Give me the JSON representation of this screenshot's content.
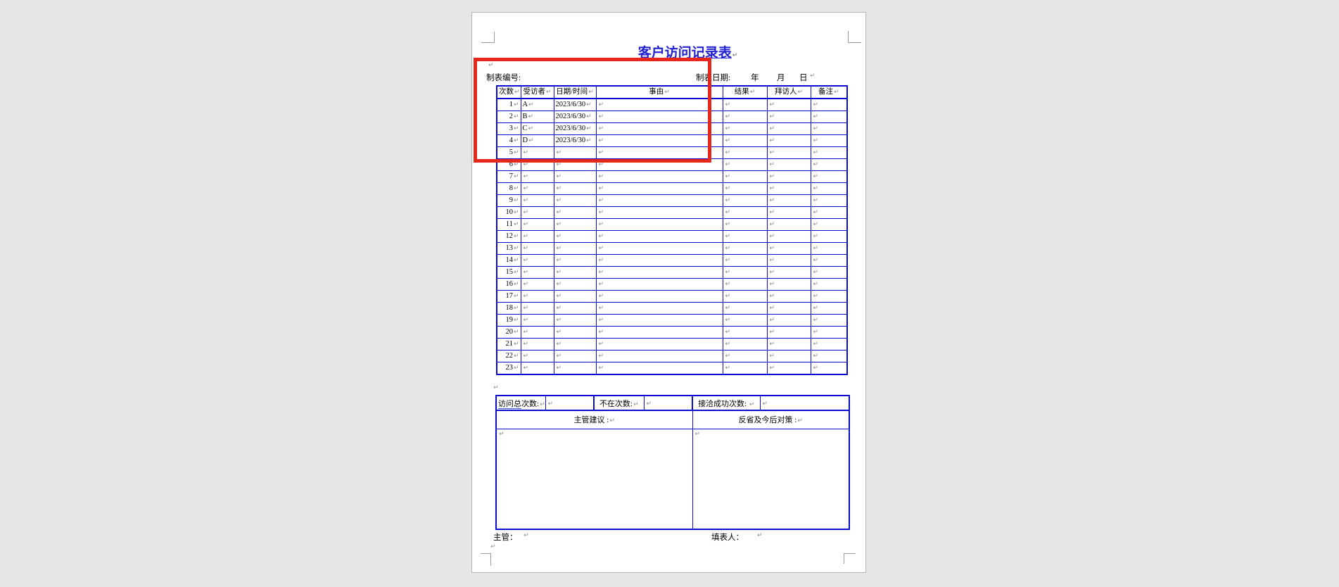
{
  "marks": {
    "pilcrow": "↵"
  },
  "title": "客户访问记录表",
  "meta": {
    "form_no_label": "制表编号:",
    "date_label": "制表日期:",
    "year_label": "年",
    "month_label": "月",
    "day_label": "日"
  },
  "table": {
    "headers": [
      "次数",
      "受访者",
      "日期/时间",
      "事由",
      "结果",
      "拜访人",
      "备注"
    ],
    "rows": [
      {
        "no": "1",
        "visitor": "A",
        "date": "2023/6/30",
        "reason": "",
        "result": "",
        "caller": "",
        "note": ""
      },
      {
        "no": "2",
        "visitor": "B",
        "date": "2023/6/30",
        "reason": "",
        "result": "",
        "caller": "",
        "note": ""
      },
      {
        "no": "3",
        "visitor": "C",
        "date": "2023/6/30",
        "reason": "",
        "result": "",
        "caller": "",
        "note": ""
      },
      {
        "no": "4",
        "visitor": "D",
        "date": "2023/6/30",
        "reason": "",
        "result": "",
        "caller": "",
        "note": ""
      },
      {
        "no": "5",
        "visitor": "",
        "date": "",
        "reason": "",
        "result": "",
        "caller": "",
        "note": ""
      },
      {
        "no": "6",
        "visitor": "",
        "date": "",
        "reason": "",
        "result": "",
        "caller": "",
        "note": ""
      },
      {
        "no": "7",
        "visitor": "",
        "date": "",
        "reason": "",
        "result": "",
        "caller": "",
        "note": ""
      },
      {
        "no": "8",
        "visitor": "",
        "date": "",
        "reason": "",
        "result": "",
        "caller": "",
        "note": ""
      },
      {
        "no": "9",
        "visitor": "",
        "date": "",
        "reason": "",
        "result": "",
        "caller": "",
        "note": ""
      },
      {
        "no": "10",
        "visitor": "",
        "date": "",
        "reason": "",
        "result": "",
        "caller": "",
        "note": ""
      },
      {
        "no": "11",
        "visitor": "",
        "date": "",
        "reason": "",
        "result": "",
        "caller": "",
        "note": ""
      },
      {
        "no": "12",
        "visitor": "",
        "date": "",
        "reason": "",
        "result": "",
        "caller": "",
        "note": ""
      },
      {
        "no": "13",
        "visitor": "",
        "date": "",
        "reason": "",
        "result": "",
        "caller": "",
        "note": ""
      },
      {
        "no": "14",
        "visitor": "",
        "date": "",
        "reason": "",
        "result": "",
        "caller": "",
        "note": ""
      },
      {
        "no": "15",
        "visitor": "",
        "date": "",
        "reason": "",
        "result": "",
        "caller": "",
        "note": ""
      },
      {
        "no": "16",
        "visitor": "",
        "date": "",
        "reason": "",
        "result": "",
        "caller": "",
        "note": ""
      },
      {
        "no": "17",
        "visitor": "",
        "date": "",
        "reason": "",
        "result": "",
        "caller": "",
        "note": ""
      },
      {
        "no": "18",
        "visitor": "",
        "date": "",
        "reason": "",
        "result": "",
        "caller": "",
        "note": ""
      },
      {
        "no": "19",
        "visitor": "",
        "date": "",
        "reason": "",
        "result": "",
        "caller": "",
        "note": ""
      },
      {
        "no": "20",
        "visitor": "",
        "date": "",
        "reason": "",
        "result": "",
        "caller": "",
        "note": ""
      },
      {
        "no": "21",
        "visitor": "",
        "date": "",
        "reason": "",
        "result": "",
        "caller": "",
        "note": ""
      },
      {
        "no": "22",
        "visitor": "",
        "date": "",
        "reason": "",
        "result": "",
        "caller": "",
        "note": ""
      },
      {
        "no": "23",
        "visitor": "",
        "date": "",
        "reason": "",
        "result": "",
        "caller": "",
        "note": ""
      }
    ]
  },
  "summary": {
    "total_label_underlined": "访问总",
    "total_label_rest": "次数:",
    "absent_label": "不在次数:",
    "success_label": "接洽成功次数: ",
    "advice_label": "主管建议 :",
    "reflection_label": "反省及今后对策 :"
  },
  "footer": {
    "supervisor_label": "主管：",
    "preparer_label": "填表人："
  },
  "annotation": {
    "color": "#e8271b"
  }
}
